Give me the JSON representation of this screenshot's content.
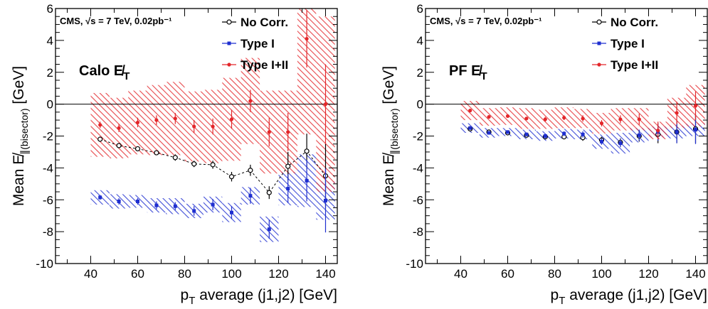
{
  "chart_data": [
    {
      "type": "scatter",
      "panel_label": "Calo E̸T",
      "cms_label": "CMS, √s = 7 TeV, 0.02pb⁻¹",
      "xlabel": "p_T average (j1,j2) [GeV]",
      "ylabel": "Mean E̸∥(bisector) [GeV]",
      "xlim": [
        25,
        145
      ],
      "ylim": [
        -10,
        6
      ],
      "x_ticks": [
        40,
        60,
        80,
        100,
        120,
        140
      ],
      "y_ticks": [
        -10,
        -8,
        -6,
        -4,
        -2,
        0,
        2,
        4,
        6
      ],
      "reference_line": 0,
      "legend": [
        "No Corr.",
        "Type I",
        "Type I+II"
      ],
      "series": [
        {
          "name": "No Corr.",
          "color": "#000000",
          "marker": "open-circle",
          "x": [
            44,
            52,
            60,
            68,
            76,
            84,
            92,
            100,
            108,
            116,
            124,
            132,
            140
          ],
          "y": [
            -2.2,
            -2.6,
            -2.8,
            -3.05,
            -3.35,
            -3.75,
            -3.8,
            -4.55,
            -4.15,
            -5.55,
            -3.9,
            -2.95,
            -4.5
          ],
          "err": [
            0.1,
            0.15,
            0.15,
            0.15,
            0.2,
            0.2,
            0.25,
            0.3,
            0.35,
            0.4,
            0.9,
            1.1,
            2.0
          ],
          "sys_band": [
            0.05,
            0.05,
            0.05,
            0.05,
            0.05,
            0.05,
            0.05,
            0.05,
            0.05,
            0.05,
            0.05,
            0.05,
            0.05
          ],
          "fit_curve": true
        },
        {
          "name": "Type I",
          "color": "#1f2fd0",
          "marker": "square",
          "x": [
            44,
            52,
            60,
            68,
            76,
            84,
            92,
            100,
            108,
            116,
            124,
            132,
            140
          ],
          "y": [
            -5.85,
            -6.1,
            -6.1,
            -6.35,
            -6.4,
            -6.7,
            -6.3,
            -6.8,
            -5.75,
            -7.85,
            -5.3,
            -4.8,
            -6.05
          ],
          "err": [
            0.15,
            0.2,
            0.2,
            0.25,
            0.25,
            0.3,
            0.35,
            0.4,
            0.5,
            0.6,
            0.9,
            1.3,
            2.0
          ],
          "sys_band": [
            0.45,
            0.45,
            0.4,
            0.45,
            0.5,
            0.45,
            0.5,
            0.6,
            0.55,
            0.8,
            1.05,
            1.65,
            1.2
          ]
        },
        {
          "name": "Type I+II",
          "color": "#e3262a",
          "marker": "circle",
          "x": [
            44,
            52,
            60,
            68,
            76,
            84,
            92,
            100,
            108,
            116,
            124,
            132,
            140
          ],
          "y": [
            -1.3,
            -1.5,
            -1.15,
            -1.0,
            -0.9,
            -1.4,
            -1.4,
            -0.95,
            0.2,
            -1.75,
            -1.75,
            4.1,
            0.0
          ],
          "err": [
            0.2,
            0.25,
            0.3,
            0.3,
            0.35,
            0.4,
            0.5,
            0.6,
            0.7,
            0.9,
            1.2,
            1.8,
            2.5
          ],
          "sys_band": [
            2.0,
            1.9,
            2.0,
            2.2,
            2.3,
            2.2,
            2.3,
            2.6,
            2.7,
            2.6,
            2.6,
            6.0,
            5.5
          ]
        }
      ]
    },
    {
      "type": "scatter",
      "panel_label": "PF E̸T",
      "cms_label": "CMS, √s = 7 TeV, 0.02pb⁻¹",
      "xlabel": "p_T average (j1,j2) [GeV]",
      "ylabel": "Mean E̸∥(bisector) [GeV]",
      "xlim": [
        25,
        145
      ],
      "ylim": [
        -10,
        6
      ],
      "x_ticks": [
        40,
        60,
        80,
        100,
        120,
        140
      ],
      "y_ticks": [
        -10,
        -8,
        -6,
        -4,
        -2,
        0,
        2,
        4,
        6
      ],
      "reference_line": 0,
      "legend": [
        "No Corr.",
        "Type I",
        "Type I+II"
      ],
      "series": [
        {
          "name": "No Corr.",
          "color": "#000000",
          "marker": "open-circle",
          "x": [
            44,
            52,
            60,
            68,
            76,
            84,
            92,
            100,
            108,
            116,
            124,
            132,
            140
          ],
          "y": [
            -1.55,
            -1.75,
            -1.8,
            -1.95,
            -2.05,
            -2.05,
            -2.1,
            -2.25,
            -2.4,
            -2.0,
            -1.9,
            -1.75,
            -1.55
          ],
          "err": [
            0.05,
            0.1,
            0.1,
            0.1,
            0.15,
            0.15,
            0.2,
            0.2,
            0.25,
            0.35,
            0.55,
            0.7,
            0.9
          ],
          "sys_band": [
            0.05,
            0.05,
            0.05,
            0.05,
            0.05,
            0.05,
            0.05,
            0.05,
            0.05,
            0.05,
            0.05,
            0.05,
            0.05
          ],
          "fit_curve": false
        },
        {
          "name": "Type I",
          "color": "#1f2fd0",
          "marker": "square",
          "x": [
            44,
            52,
            60,
            68,
            76,
            84,
            92,
            100,
            108,
            116,
            124,
            132,
            140
          ],
          "y": [
            -1.5,
            -1.8,
            -1.75,
            -1.9,
            -2.0,
            -1.85,
            -1.9,
            -2.35,
            -2.45,
            -1.95,
            -1.75,
            -1.75,
            -1.6
          ],
          "err": [
            0.05,
            0.1,
            0.1,
            0.1,
            0.15,
            0.15,
            0.2,
            0.2,
            0.25,
            0.35,
            0.55,
            0.7,
            0.9
          ],
          "sys_band": [
            0.3,
            0.3,
            0.25,
            0.3,
            0.3,
            0.3,
            0.3,
            0.45,
            0.65,
            0.45,
            0.35,
            0.4,
            0.4
          ]
        },
        {
          "name": "Type I+II",
          "color": "#e3262a",
          "marker": "circle",
          "x": [
            44,
            52,
            60,
            68,
            76,
            84,
            92,
            100,
            108,
            116,
            124,
            132,
            140
          ],
          "y": [
            -0.4,
            -0.8,
            -0.75,
            -0.9,
            -0.95,
            -0.85,
            -0.9,
            -1.2,
            -0.95,
            -0.95,
            -1.65,
            -0.55,
            -0.1
          ],
          "err": [
            0.05,
            0.1,
            0.1,
            0.1,
            0.15,
            0.15,
            0.2,
            0.2,
            0.25,
            0.35,
            0.55,
            0.7,
            0.9
          ],
          "sys_band": [
            0.6,
            0.55,
            0.55,
            0.65,
            0.6,
            0.65,
            0.6,
            0.65,
            0.7,
            0.7,
            0.55,
            0.95,
            1.3
          ]
        }
      ]
    }
  ]
}
